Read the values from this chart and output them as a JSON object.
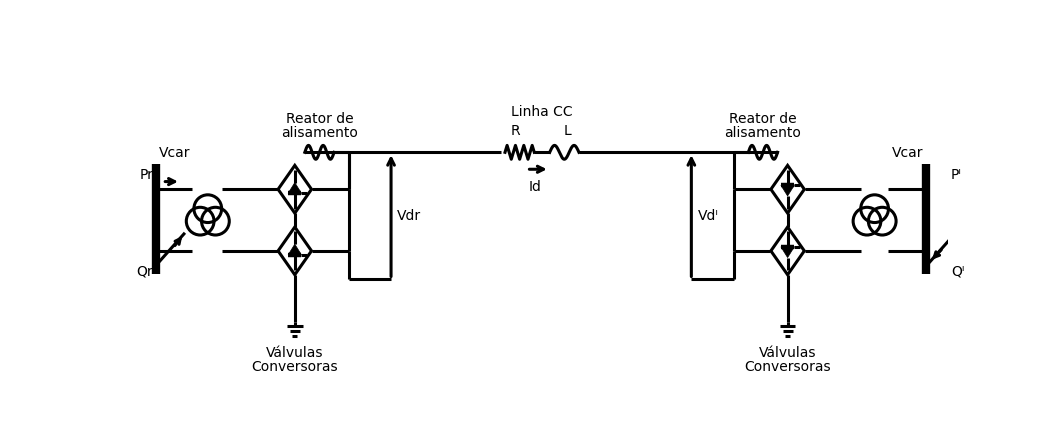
{
  "bg_color": "#ffffff",
  "lw": 2.2,
  "color": "black",
  "figsize": [
    10.56,
    4.48
  ],
  "dpi": 100,
  "labels": {
    "Vcar_left": "Vcar",
    "Pr": "Pr",
    "Qr": "Qr",
    "Vdr": "Vdr",
    "reator_left_1": "Reator de",
    "reator_left_2": "alisamento",
    "valvulas_left_1": "Válvulas",
    "valvulas_left_2": "Conversoras",
    "linha_cc": "Linha CC",
    "R_lbl": "R",
    "L_lbl": "L",
    "Id_lbl": "Id",
    "Vdi": "Vdᴵ",
    "reator_right_1": "Reator de",
    "reator_right_2": "alisamento",
    "valvulas_right_1": "Válvulas",
    "valvulas_right_2": "Conversoras",
    "Vcar_right": "Vcar",
    "Pi": "Pᴵ",
    "Qi": "Qᴵ"
  }
}
